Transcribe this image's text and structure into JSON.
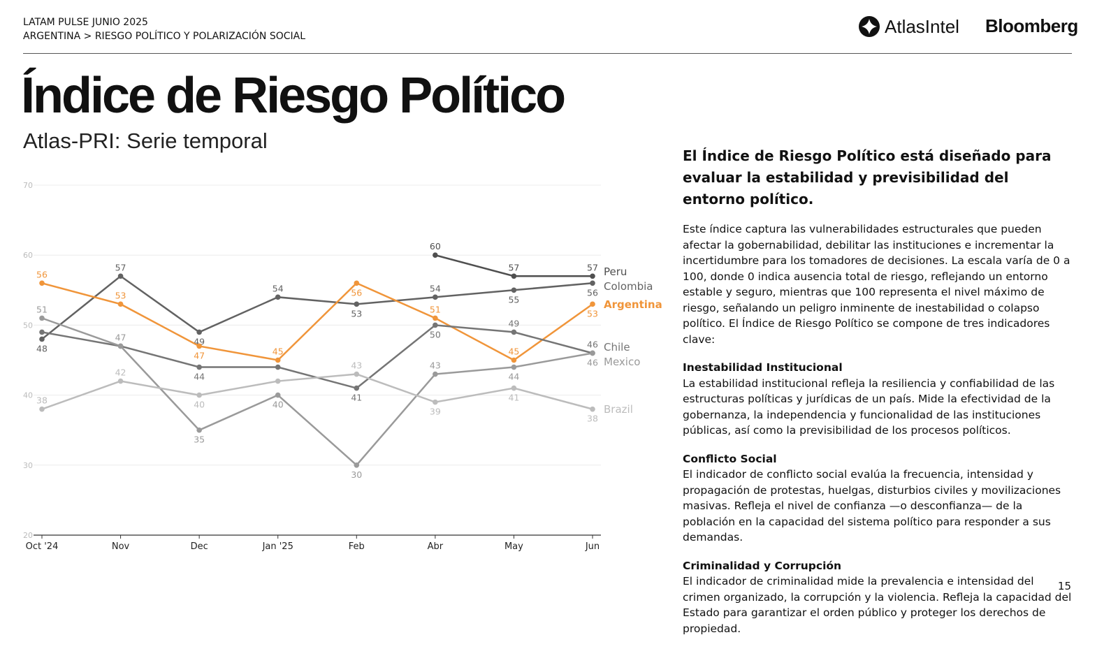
{
  "header": {
    "line1": "LATAM PULSE JUNIO 2025",
    "line2": "ARGENTINA > RIESGO POLÍTICO Y POLARIZACIÓN SOCIAL"
  },
  "logos": {
    "atlas": "AtlasIntel",
    "bloomberg": "Bloomberg"
  },
  "title": "Índice de Riesgo Político",
  "subtitle": "Atlas-PRI: Serie temporal",
  "chart_data": {
    "type": "line",
    "title": "Atlas-PRI: Serie temporal",
    "xlabel": "",
    "ylabel": "",
    "ylim": [
      20,
      70
    ],
    "yticks": [
      20,
      30,
      40,
      50,
      60,
      70
    ],
    "categories": [
      "Oct '24",
      "Nov",
      "Dec",
      "Jan '25",
      "Feb",
      "Abr",
      "May",
      "Jun"
    ],
    "grid": true,
    "legend": "right end labels",
    "series": [
      {
        "name": "Peru",
        "color": "#4f4f4f",
        "values": [
          null,
          null,
          null,
          null,
          null,
          60,
          57,
          57
        ],
        "labels": [
          null,
          null,
          null,
          null,
          null,
          60,
          57,
          57
        ]
      },
      {
        "name": "Colombia",
        "color": "#626262",
        "values": [
          48,
          57,
          49,
          54,
          53,
          54,
          55,
          56
        ],
        "labels": [
          48,
          57,
          49,
          54,
          53,
          54,
          55,
          56
        ]
      },
      {
        "name": "Argentina",
        "color": "#f0953a",
        "values": [
          56,
          53,
          47,
          45,
          56,
          51,
          45,
          53
        ],
        "labels": [
          56,
          53,
          47,
          45,
          56,
          51,
          45,
          53
        ]
      },
      {
        "name": "Chile",
        "color": "#757575",
        "values": [
          49,
          47,
          44,
          44,
          41,
          50,
          49,
          46
        ],
        "labels": [
          null,
          null,
          44,
          null,
          41,
          50,
          49,
          46
        ]
      },
      {
        "name": "Mexico",
        "color": "#9a9a9a",
        "values": [
          51,
          47,
          35,
          40,
          30,
          43,
          44,
          46
        ],
        "labels": [
          51,
          47,
          35,
          40,
          30,
          43,
          44,
          46
        ]
      },
      {
        "name": "Brazil",
        "color": "#bcbcbc",
        "values": [
          38,
          42,
          40,
          42,
          43,
          39,
          41,
          38
        ],
        "labels": [
          38,
          42,
          40,
          null,
          43,
          39,
          41,
          38
        ]
      }
    ]
  },
  "side": {
    "heading": "El Índice de Riesgo Político está diseñado para evaluar la estabilidad y previsibilidad del entorno político.",
    "intro": "Este índice captura las vulnerabilidades estructurales que pueden afectar la gobernabilidad, debilitar las instituciones e incrementar la incertidumbre para los tomadores de decisiones. La escala varía de 0 a 100, donde 0 indica ausencia total de riesgo, reflejando un entorno estable y seguro, mientras que 100 representa el nivel máximo de riesgo, señalando un peligro inminente de inestabilidad o colapso político. El Índice de Riesgo Político se compone de tres indicadores clave:",
    "sections": [
      {
        "title": "Inestabilidad Institucional",
        "text": "La estabilidad institucional refleja la resiliencia y confiabilidad de las estructuras políticas y jurídicas de un país. Mide la efectividad de la gobernanza, la independencia y funcionalidad de las instituciones públicas, así como la previsibilidad de los procesos políticos."
      },
      {
        "title": "Conflicto Social",
        "text": "El indicador de conflicto social evalúa la frecuencia, intensidad y propagación de protestas, huelgas, disturbios civiles y movilizaciones masivas. Refleja el nivel de confianza —o desconfianza— de la población en la capacidad del sistema político para responder a sus demandas."
      },
      {
        "title": "Criminalidad y Corrupción",
        "text": "El indicador de criminalidad mide la prevalencia e intensidad del crimen organizado, la corrupción y la violencia. Refleja la capacidad del Estado para garantizar el orden público y proteger los derechos de propiedad."
      }
    ]
  },
  "page_number": "15"
}
